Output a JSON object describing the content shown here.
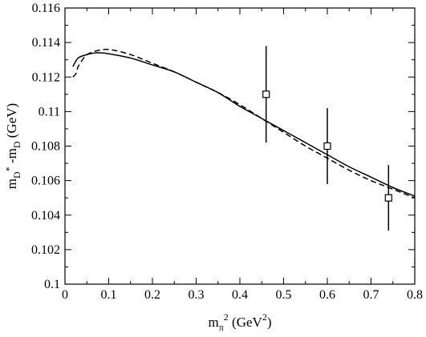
{
  "chart_data": {
    "type": "line",
    "xlabel_main": "m",
    "xlabel_sub": "π",
    "xlabel_sup": "2",
    "xlabel_unit_open": " (GeV",
    "xlabel_unit_sup": "2",
    "xlabel_unit_close": ")",
    "ylabel_m1": "m",
    "ylabel_sub1": "D",
    "ylabel_sup1": "*",
    "ylabel_mid": " -m",
    "ylabel_sub2": "D",
    "ylabel_unit": " (GeV)",
    "xlim": [
      0,
      0.8
    ],
    "ylim": [
      0.1,
      0.116
    ],
    "x_ticks": [
      "0",
      "0.1",
      "0.2",
      "0.3",
      "0.4",
      "0.5",
      "0.6",
      "0.7",
      "0.8"
    ],
    "y_ticks": [
      "0.1",
      "0.102",
      "0.104",
      "0.106",
      "0.108",
      "0.11",
      "0.112",
      "0.114",
      "0.116"
    ],
    "grid": false,
    "series": [
      {
        "style": "solid",
        "x": [
          0.018,
          0.03,
          0.05,
          0.07,
          0.08,
          0.1,
          0.15,
          0.2,
          0.25,
          0.3,
          0.35,
          0.4,
          0.45,
          0.5,
          0.55,
          0.6,
          0.65,
          0.7,
          0.75,
          0.8
        ],
        "y": [
          0.1126,
          0.1131,
          0.1133,
          0.1134,
          0.1134,
          0.11335,
          0.1131,
          0.1127,
          0.1123,
          0.1117,
          0.1111,
          0.1103,
          0.1096,
          0.1089,
          0.1082,
          0.1075,
          0.1068,
          0.1062,
          0.1056,
          0.1051
        ]
      },
      {
        "style": "dashed",
        "x": [
          0.018,
          0.025,
          0.03,
          0.04,
          0.05,
          0.07,
          0.1,
          0.15,
          0.2,
          0.25,
          0.3,
          0.35,
          0.4,
          0.45,
          0.5,
          0.55,
          0.6,
          0.65,
          0.7,
          0.75,
          0.8
        ],
        "y": [
          0.112,
          0.1122,
          0.1126,
          0.113,
          0.1133,
          0.1135,
          0.1136,
          0.1133,
          0.1128,
          0.1123,
          0.1117,
          0.1111,
          0.1104,
          0.1096,
          0.1088,
          0.108,
          0.1073,
          0.1066,
          0.106,
          0.1055,
          0.105
        ]
      }
    ],
    "points": [
      {
        "x": 0.46,
        "y": 0.111,
        "yerr_low": 0.1082,
        "yerr_high": 0.1138
      },
      {
        "x": 0.6,
        "y": 0.108,
        "yerr_low": 0.1058,
        "yerr_high": 0.1102
      },
      {
        "x": 0.74,
        "y": 0.105,
        "yerr_low": 0.1031,
        "yerr_high": 0.1069
      }
    ]
  }
}
